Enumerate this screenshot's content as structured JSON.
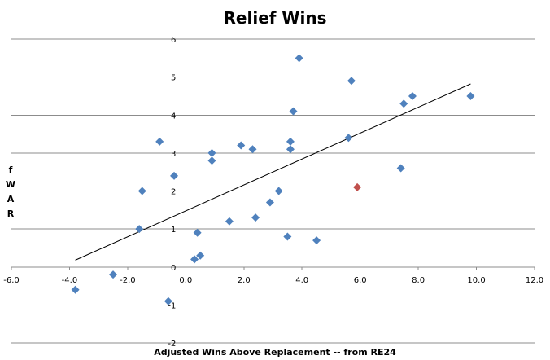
{
  "chart_data": {
    "type": "scatter",
    "title": "Relief Wins",
    "xlabel": "Adjusted Wins Above Replacement -- from RE24",
    "ylabel": "fWAR",
    "ylabel_letters": [
      "f",
      "W",
      "A",
      "R"
    ],
    "xlim": [
      -6.0,
      12.0
    ],
    "ylim": [
      -2,
      6
    ],
    "x_ticks": [
      -6.0,
      -4.0,
      -2.0,
      0.0,
      2.0,
      4.0,
      6.0,
      8.0,
      10.0,
      12.0
    ],
    "x_tick_labels": [
      "-6.0",
      "-4.0",
      "-2.0",
      "0.0",
      "2.0",
      "4.0",
      "6.0",
      "8.0",
      "10.0",
      "12.0"
    ],
    "y_ticks": [
      -2,
      -1,
      0,
      1,
      2,
      3,
      4,
      5,
      6
    ],
    "y_tick_labels": [
      "-2",
      "-1",
      "0",
      "1",
      "2",
      "3",
      "4",
      "5",
      "6"
    ],
    "grid": "horizontal",
    "series": [
      {
        "color": "#4F81BD",
        "x": [
          -3.8,
          -2.5,
          -1.6,
          -1.5,
          -0.9,
          -0.6,
          -0.4,
          0.3,
          0.4,
          0.5,
          0.9,
          0.9,
          1.5,
          1.9,
          2.3,
          2.4,
          2.9,
          3.2,
          3.5,
          3.6,
          3.6,
          3.7,
          3.9,
          4.5,
          5.6,
          5.7,
          7.4,
          7.5,
          7.8,
          9.8
        ],
        "values": [
          -0.6,
          -0.2,
          1.0,
          2.0,
          3.3,
          -0.9,
          2.4,
          0.2,
          0.9,
          0.3,
          2.8,
          3.0,
          1.2,
          3.2,
          3.1,
          1.3,
          1.7,
          2.0,
          0.8,
          3.1,
          3.3,
          4.1,
          5.5,
          0.7,
          3.4,
          4.9,
          2.6,
          4.3,
          4.5,
          4.5
        ]
      },
      {
        "color": "#C0504D",
        "x": [
          5.9
        ],
        "values": [
          2.1
        ]
      }
    ],
    "trendline": {
      "color": "#000000",
      "x": [
        -3.8,
        9.8
      ],
      "values": [
        0.18,
        4.82
      ]
    }
  }
}
